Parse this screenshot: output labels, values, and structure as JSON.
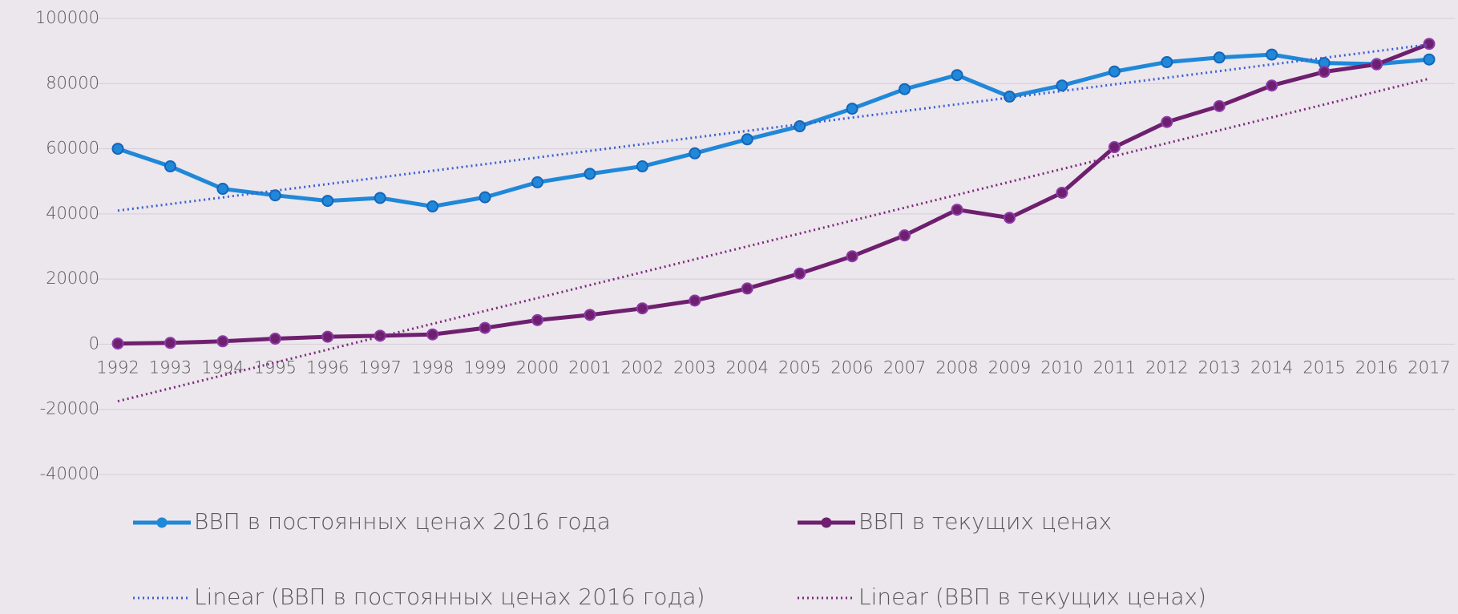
{
  "chart_data": {
    "type": "line",
    "categories": [
      "1992",
      "1993",
      "1994",
      "1995",
      "1996",
      "1997",
      "1998",
      "1999",
      "2000",
      "2001",
      "2002",
      "2003",
      "2004",
      "2005",
      "2006",
      "2007",
      "2008",
      "2009",
      "2010",
      "2011",
      "2012",
      "2013",
      "2014",
      "2015",
      "2016",
      "2017"
    ],
    "series": [
      {
        "name": "ВВП в постоянных ценах 2016 года",
        "color": "#1f88d8",
        "style": "solid",
        "markers": true,
        "values": [
          60000,
          54600,
          47700,
          45700,
          44000,
          44900,
          42300,
          45100,
          49700,
          52300,
          54600,
          58600,
          62900,
          66900,
          72300,
          78300,
          82600,
          76000,
          79400,
          83700,
          86600,
          88000,
          88900,
          86300,
          86000,
          87400
        ]
      },
      {
        "name": "ВВП в текущих ценах",
        "color": "#6e1f6e",
        "style": "solid",
        "markers": true,
        "values": [
          200,
          400,
          900,
          1700,
          2300,
          2600,
          3000,
          5000,
          7400,
          9000,
          11000,
          13400,
          17100,
          21700,
          27000,
          33400,
          41300,
          38800,
          46500,
          60500,
          68200,
          73100,
          79400,
          83600,
          85900,
          92200
        ]
      },
      {
        "name": "Linear (ВВП в постоянных ценах 2016 года)",
        "color": "#3a62d0",
        "style": "dotted",
        "markers": false,
        "values": [
          41000,
          43040,
          45080,
          47120,
          49160,
          51200,
          53240,
          55280,
          57320,
          59360,
          61400,
          63440,
          65480,
          67520,
          69560,
          71600,
          73640,
          75680,
          77720,
          79760,
          81800,
          83840,
          85880,
          87920,
          89960,
          92000
        ]
      },
      {
        "name": "Linear (ВВП в текущих ценах)",
        "color": "#7a2a7a",
        "style": "dotted",
        "markers": false,
        "values": [
          -17500,
          -13540,
          -9580,
          -5620,
          -1660,
          2300,
          6260,
          10220,
          14180,
          18140,
          22100,
          26060,
          30020,
          33980,
          37940,
          41900,
          45860,
          49820,
          53780,
          57740,
          61700,
          65660,
          69620,
          73580,
          77540,
          81500
        ]
      }
    ],
    "ylim": [
      -40000,
      100000
    ],
    "yticks": [
      -40000,
      -20000,
      0,
      20000,
      40000,
      60000,
      80000,
      100000
    ],
    "grid": true
  }
}
